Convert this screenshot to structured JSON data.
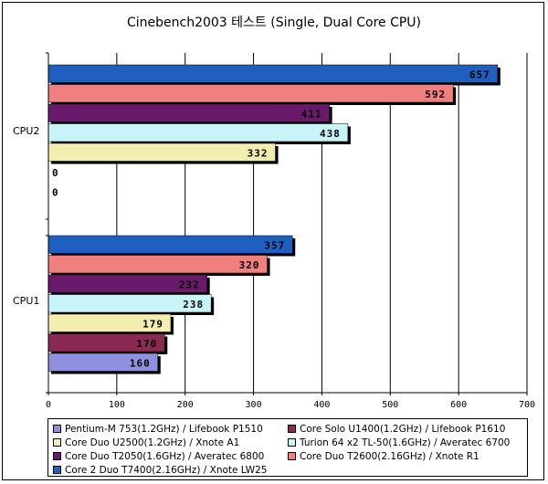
{
  "chart_data": {
    "type": "bar",
    "orientation": "horizontal",
    "title": "Cinebench2003 테스트 (Single, Dual Core CPU)",
    "categories": [
      "CPU2",
      "CPU1"
    ],
    "xlim": [
      0,
      700
    ],
    "x_ticks": [
      0,
      100,
      200,
      300,
      400,
      500,
      600,
      700
    ],
    "grid": true,
    "legend_position": "bottom",
    "series": [
      {
        "name": "Core 2 Duo T7400(2.16GHz) / Xnote LW25",
        "color": "#1f5fbf",
        "values": [
          657,
          357
        ]
      },
      {
        "name": "Core Duo T2600(2.16GHz) / Xnote R1",
        "color": "#f07f7f",
        "values": [
          592,
          320
        ]
      },
      {
        "name": "Core Duo T2050(1.6GHz) / Averatec 6800",
        "color": "#6a1a6a",
        "values": [
          411,
          232
        ]
      },
      {
        "name": "Turion 64 x2 TL-50(1.6GHz) / Averatec 6700",
        "color": "#c8f4f8",
        "values": [
          438,
          238
        ]
      },
      {
        "name": "Core Duo U2500(1.2GHz) / Xnote A1",
        "color": "#f2eeb0",
        "values": [
          332,
          179
        ]
      },
      {
        "name": "Core Solo U1400(1.2GHz) / Lifebook P1610",
        "color": "#8a2a52",
        "values": [
          0,
          170
        ]
      },
      {
        "name": "Pentium-M 753(1.2GHz) / Lifebook P1510",
        "color": "#9090e0",
        "values": [
          0,
          160
        ]
      }
    ]
  }
}
